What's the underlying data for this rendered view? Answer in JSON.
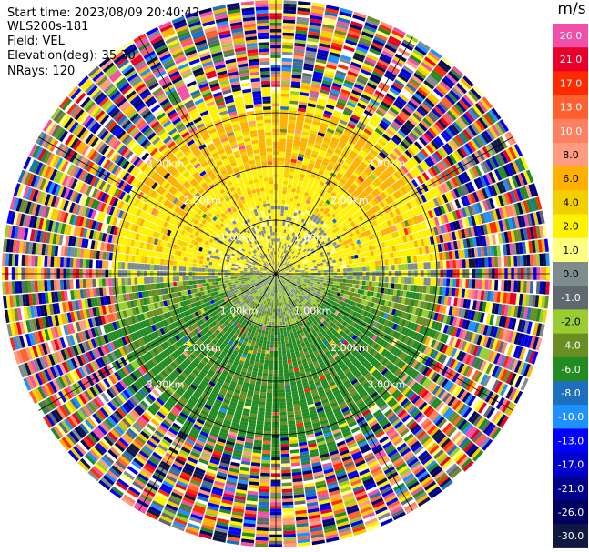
{
  "header": {
    "start_time": "Start time: 2023/08/09 20:40:42",
    "instrument": "WLS200s-181",
    "field": "Field: VEL",
    "elevation": "Elevation(deg): 35.30",
    "nrays": "NRays: 120"
  },
  "chart_data": {
    "type": "heatmap",
    "projection": "polar-ppi",
    "n_rays": 120,
    "range_rings_km": [
      1.0,
      2.0,
      3.0
    ],
    "ring_labels": [
      "1.00km",
      "2.00km",
      "3.00km"
    ],
    "max_range_km": 5.1,
    "velocity_pattern": {
      "0-1.3km": "near-zero velocities (grey / olive / yellow)",
      "1.3-3km north half": "positive 2 to 6 m/s (yellow / orange)",
      "1.3-3km south half": "negative -4 to -6 m/s (greens)",
      "beyond 3km": "noisy values spanning full scale"
    },
    "colorbar": {
      "unit": "m/s",
      "ticks": [
        "26.0",
        "21.0",
        "17.0",
        "13.0",
        "10.0",
        "8.0",
        "6.0",
        "4.0",
        "2.0",
        "1.0",
        "0.0",
        "-1.0",
        "-2.0",
        "-4.0",
        "-6.0",
        "-8.0",
        "-10.0",
        "-13.0",
        "-17.0",
        "-21.0",
        "-26.0",
        "-30.0"
      ],
      "colors": [
        "#f050a8",
        "#e8002a",
        "#ff2a00",
        "#ff6030",
        "#ff8060",
        "#ff9c80",
        "#ffb000",
        "#f2d000",
        "#fff200",
        "#ffff80",
        "#7f8c8d",
        "#606870",
        "#9acd32",
        "#6b8e23",
        "#228b22",
        "#1e6fbe",
        "#1e90ff",
        "#0000ff",
        "#0000cd",
        "#00008b",
        "#000060",
        "#101840"
      ]
    }
  }
}
